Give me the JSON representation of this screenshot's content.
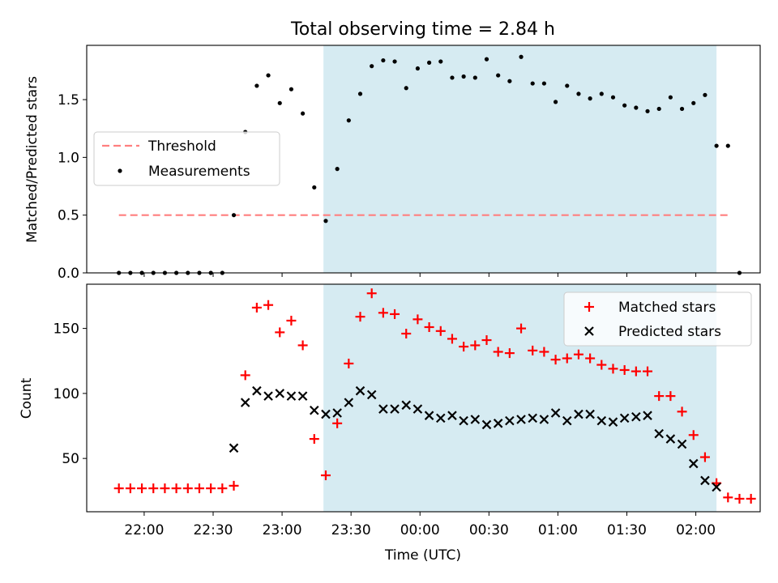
{
  "figure": {
    "title": "Total observing time = 2.84 h",
    "xlabel": "Time (UTC)",
    "x_ticks": [
      "22:00",
      "22:30",
      "23:00",
      "23:30",
      "00:00",
      "00:30",
      "01:00",
      "01:30",
      "02:00"
    ],
    "x_tick_minutes": [
      0,
      30,
      60,
      90,
      120,
      150,
      180,
      210,
      240
    ],
    "xlim_minutes": [
      -25,
      268
    ],
    "colors": {
      "shade": "#add8e6",
      "threshold": "#ff7f7f",
      "measurement": "#000000",
      "matched": "#ff0000",
      "predicted": "#000000"
    }
  },
  "chart_data": [
    {
      "type": "scatter",
      "name": "ratio-panel",
      "ylabel": "Matched/Predicted stars",
      "ylim": [
        0,
        1.97
      ],
      "y_ticks": [
        0.0,
        0.5,
        1.0,
        1.5
      ],
      "y_tick_labels": [
        "0.0",
        "0.5",
        "1.0",
        "1.5"
      ],
      "legend_position": "center-left",
      "shaded_span_minutes": [
        78,
        249
      ],
      "threshold": {
        "name": "Threshold",
        "value": 0.5,
        "x_range_minutes": [
          -11,
          255
        ]
      },
      "series": [
        {
          "name": "Measurements",
          "x_minutes": [
            -11,
            -6,
            -1,
            4,
            9,
            14,
            19,
            24,
            29,
            34,
            39,
            44,
            49,
            54,
            59,
            64,
            69,
            74,
            79,
            84,
            89,
            94,
            99,
            104,
            109,
            114,
            119,
            124,
            129,
            134,
            139,
            144,
            149,
            154,
            159,
            164,
            169,
            174,
            179,
            184,
            189,
            194,
            199,
            204,
            209,
            214,
            219,
            224,
            229,
            234,
            239,
            244,
            249,
            254
          ],
          "values": [
            0,
            0,
            0,
            0,
            0,
            0,
            0,
            0,
            0,
            0,
            0.5,
            1.22,
            1.62,
            1.71,
            1.47,
            1.59,
            1.38,
            0.74,
            0.45,
            0.9,
            1.32,
            1.55,
            1.79,
            1.84,
            1.83,
            1.6,
            1.77,
            1.82,
            1.83,
            1.69,
            1.7,
            1.69,
            1.85,
            1.71,
            1.66,
            1.87,
            1.64,
            1.64,
            1.48,
            1.62,
            1.55,
            1.51,
            1.55,
            1.52,
            1.45,
            1.43,
            1.4,
            1.42,
            1.52,
            1.42,
            1.47,
            1.54,
            1.1,
            1.1
          ]
        }
      ],
      "extra_points": [
        {
          "x_minutes": 259,
          "value": 0
        }
      ]
    },
    {
      "type": "scatter",
      "name": "count-panel",
      "ylabel": "Count",
      "ylim": [
        9,
        184
      ],
      "y_ticks": [
        50,
        100,
        150
      ],
      "y_tick_labels": [
        "50",
        "100",
        "150"
      ],
      "legend_position": "top-right",
      "shaded_span_minutes": [
        78,
        249
      ],
      "series": [
        {
          "name": "Matched stars",
          "marker": "plus",
          "x_minutes": [
            -11,
            -6,
            -1,
            4,
            9,
            14,
            19,
            24,
            29,
            34,
            39,
            44,
            49,
            54,
            59,
            64,
            69,
            74,
            79,
            84,
            89,
            94,
            99,
            104,
            109,
            114,
            119,
            124,
            129,
            134,
            139,
            144,
            149,
            154,
            159,
            164,
            169,
            174,
            179,
            184,
            189,
            194,
            199,
            204,
            209,
            214,
            219,
            224,
            229,
            234,
            239,
            244,
            249,
            254,
            259,
            264
          ],
          "values": [
            27,
            27,
            27,
            27,
            27,
            27,
            27,
            27,
            27,
            27,
            29,
            114,
            166,
            168,
            147,
            156,
            137,
            65,
            37,
            77,
            123,
            159,
            177,
            162,
            161,
            146,
            157,
            151,
            148,
            142,
            136,
            137,
            141,
            132,
            131,
            150,
            133,
            132,
            126,
            127,
            130,
            127,
            122,
            119,
            118,
            117,
            117,
            98,
            98,
            86,
            68,
            51,
            31,
            20,
            19,
            19
          ]
        },
        {
          "name": "Predicted stars",
          "marker": "x",
          "x_minutes": [
            39,
            44,
            49,
            54,
            59,
            64,
            69,
            74,
            79,
            84,
            89,
            94,
            99,
            104,
            109,
            114,
            119,
            124,
            129,
            134,
            139,
            144,
            149,
            154,
            159,
            164,
            169,
            174,
            179,
            184,
            189,
            194,
            199,
            204,
            209,
            214,
            219,
            224,
            229,
            234,
            239,
            244,
            249
          ],
          "values": [
            58,
            93,
            102,
            98,
            100,
            98,
            98,
            87,
            84,
            85,
            93,
            102,
            99,
            88,
            88,
            91,
            88,
            83,
            81,
            83,
            79,
            80,
            76,
            77,
            79,
            80,
            81,
            80,
            85,
            79,
            84,
            84,
            79,
            78,
            81,
            82,
            83,
            69,
            65,
            61,
            46,
            33,
            28
          ]
        }
      ]
    }
  ]
}
